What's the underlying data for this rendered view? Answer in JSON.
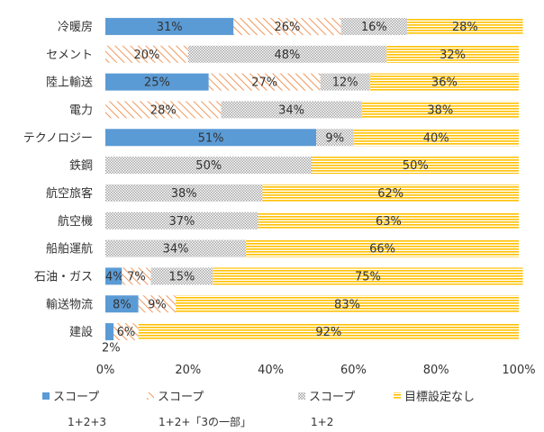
{
  "chart_data": {
    "type": "bar",
    "orientation": "horizontal",
    "stacked": true,
    "percent": true,
    "title": "",
    "xlabel": "",
    "ylabel": "",
    "xlim": [
      0,
      100
    ],
    "xticks": [
      "0%",
      "20%",
      "40%",
      "60%",
      "80%",
      "100%"
    ],
    "grid": false,
    "legend_position": "bottom",
    "categories": [
      "冷暖房",
      "セメント",
      "陸上輸送",
      "電力",
      "テクノロジー",
      "鉄鋼",
      "航空旅客",
      "航空機",
      "船舶運航",
      "石油・ガス",
      "輸送物流",
      "建設"
    ],
    "series": [
      {
        "name": "スコープ",
        "subname": "1+2+3",
        "pattern": "solid",
        "color": "#5b9bd5",
        "values": [
          31,
          0,
          25,
          0,
          51,
          0,
          0,
          0,
          0,
          4,
          8,
          2
        ]
      },
      {
        "name": "スコープ",
        "subname": "1+2+「3の一部」",
        "pattern": "diagonal",
        "color": "#ed7d31",
        "values": [
          26,
          20,
          27,
          28,
          0,
          0,
          0,
          0,
          0,
          7,
          9,
          6
        ]
      },
      {
        "name": "スコープ",
        "subname": "1+2",
        "pattern": "dots",
        "color": "#a5a5a5",
        "values": [
          16,
          48,
          12,
          34,
          9,
          50,
          38,
          37,
          34,
          15,
          0,
          0
        ]
      },
      {
        "name": "目標設定なし",
        "subname": "",
        "pattern": "horizontal",
        "color": "#ffc000",
        "values": [
          28,
          32,
          36,
          38,
          40,
          50,
          62,
          63,
          66,
          75,
          83,
          92
        ]
      }
    ]
  }
}
